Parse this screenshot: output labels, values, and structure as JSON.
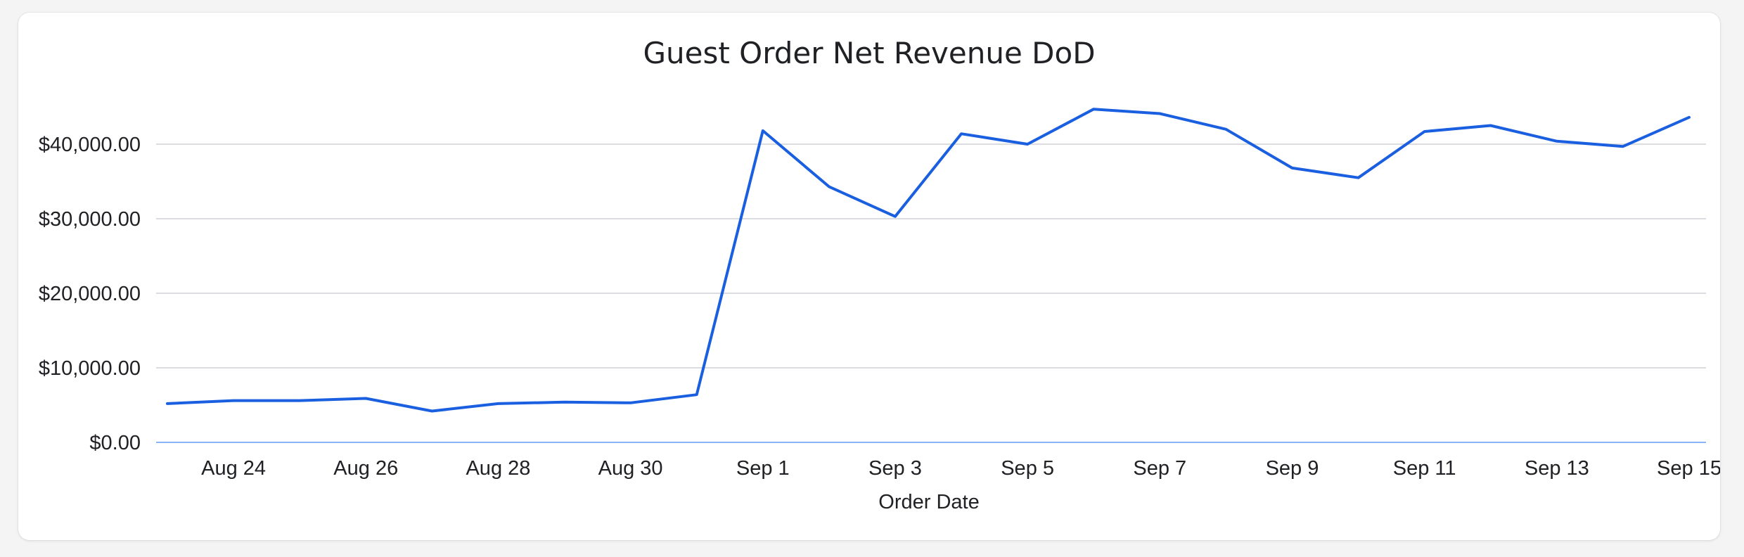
{
  "chart_data": {
    "type": "line",
    "title": "Guest Order Net Revenue DoD",
    "xlabel": "Order Date",
    "ylabel": "",
    "ylim": [
      0,
      46000
    ],
    "y_ticks": [
      {
        "value": 0,
        "label": "$0.00"
      },
      {
        "value": 10000,
        "label": "$10,000.00"
      },
      {
        "value": 20000,
        "label": "$20,000.00"
      },
      {
        "value": 30000,
        "label": "$30,000.00"
      },
      {
        "value": 40000,
        "label": "$40,000.00"
      }
    ],
    "x_ticks": [
      {
        "index": 1,
        "label": "Aug 24"
      },
      {
        "index": 3,
        "label": "Aug 26"
      },
      {
        "index": 5,
        "label": "Aug 28"
      },
      {
        "index": 7,
        "label": "Aug 30"
      },
      {
        "index": 9,
        "label": "Sep 1"
      },
      {
        "index": 11,
        "label": "Sep 3"
      },
      {
        "index": 13,
        "label": "Sep 5"
      },
      {
        "index": 15,
        "label": "Sep 7"
      },
      {
        "index": 17,
        "label": "Sep 9"
      },
      {
        "index": 19,
        "label": "Sep 11"
      },
      {
        "index": 21,
        "label": "Sep 13"
      },
      {
        "index": 23,
        "label": "Sep 15"
      }
    ],
    "series": [
      {
        "name": "Guest Order Net Revenue",
        "color": "#1a5fe0",
        "dates": [
          "Aug 23",
          "Aug 24",
          "Aug 25",
          "Aug 26",
          "Aug 27",
          "Aug 28",
          "Aug 29",
          "Aug 30",
          "Aug 31",
          "Sep 1",
          "Sep 2",
          "Sep 3",
          "Sep 4",
          "Sep 5",
          "Sep 6",
          "Sep 7",
          "Sep 8",
          "Sep 9",
          "Sep 10",
          "Sep 11",
          "Sep 12",
          "Sep 13",
          "Sep 14",
          "Sep 15"
        ],
        "values": [
          5200,
          5600,
          5600,
          5900,
          4200,
          5200,
          5400,
          5300,
          6400,
          41800,
          34300,
          30300,
          41400,
          40000,
          44700,
          44100,
          42000,
          36800,
          35500,
          41700,
          42500,
          40400,
          39700,
          43600
        ]
      }
    ]
  },
  "colors": {
    "line": "#1a5fe0",
    "grid": "#dadce0",
    "baseline": "#8ab4f8"
  }
}
